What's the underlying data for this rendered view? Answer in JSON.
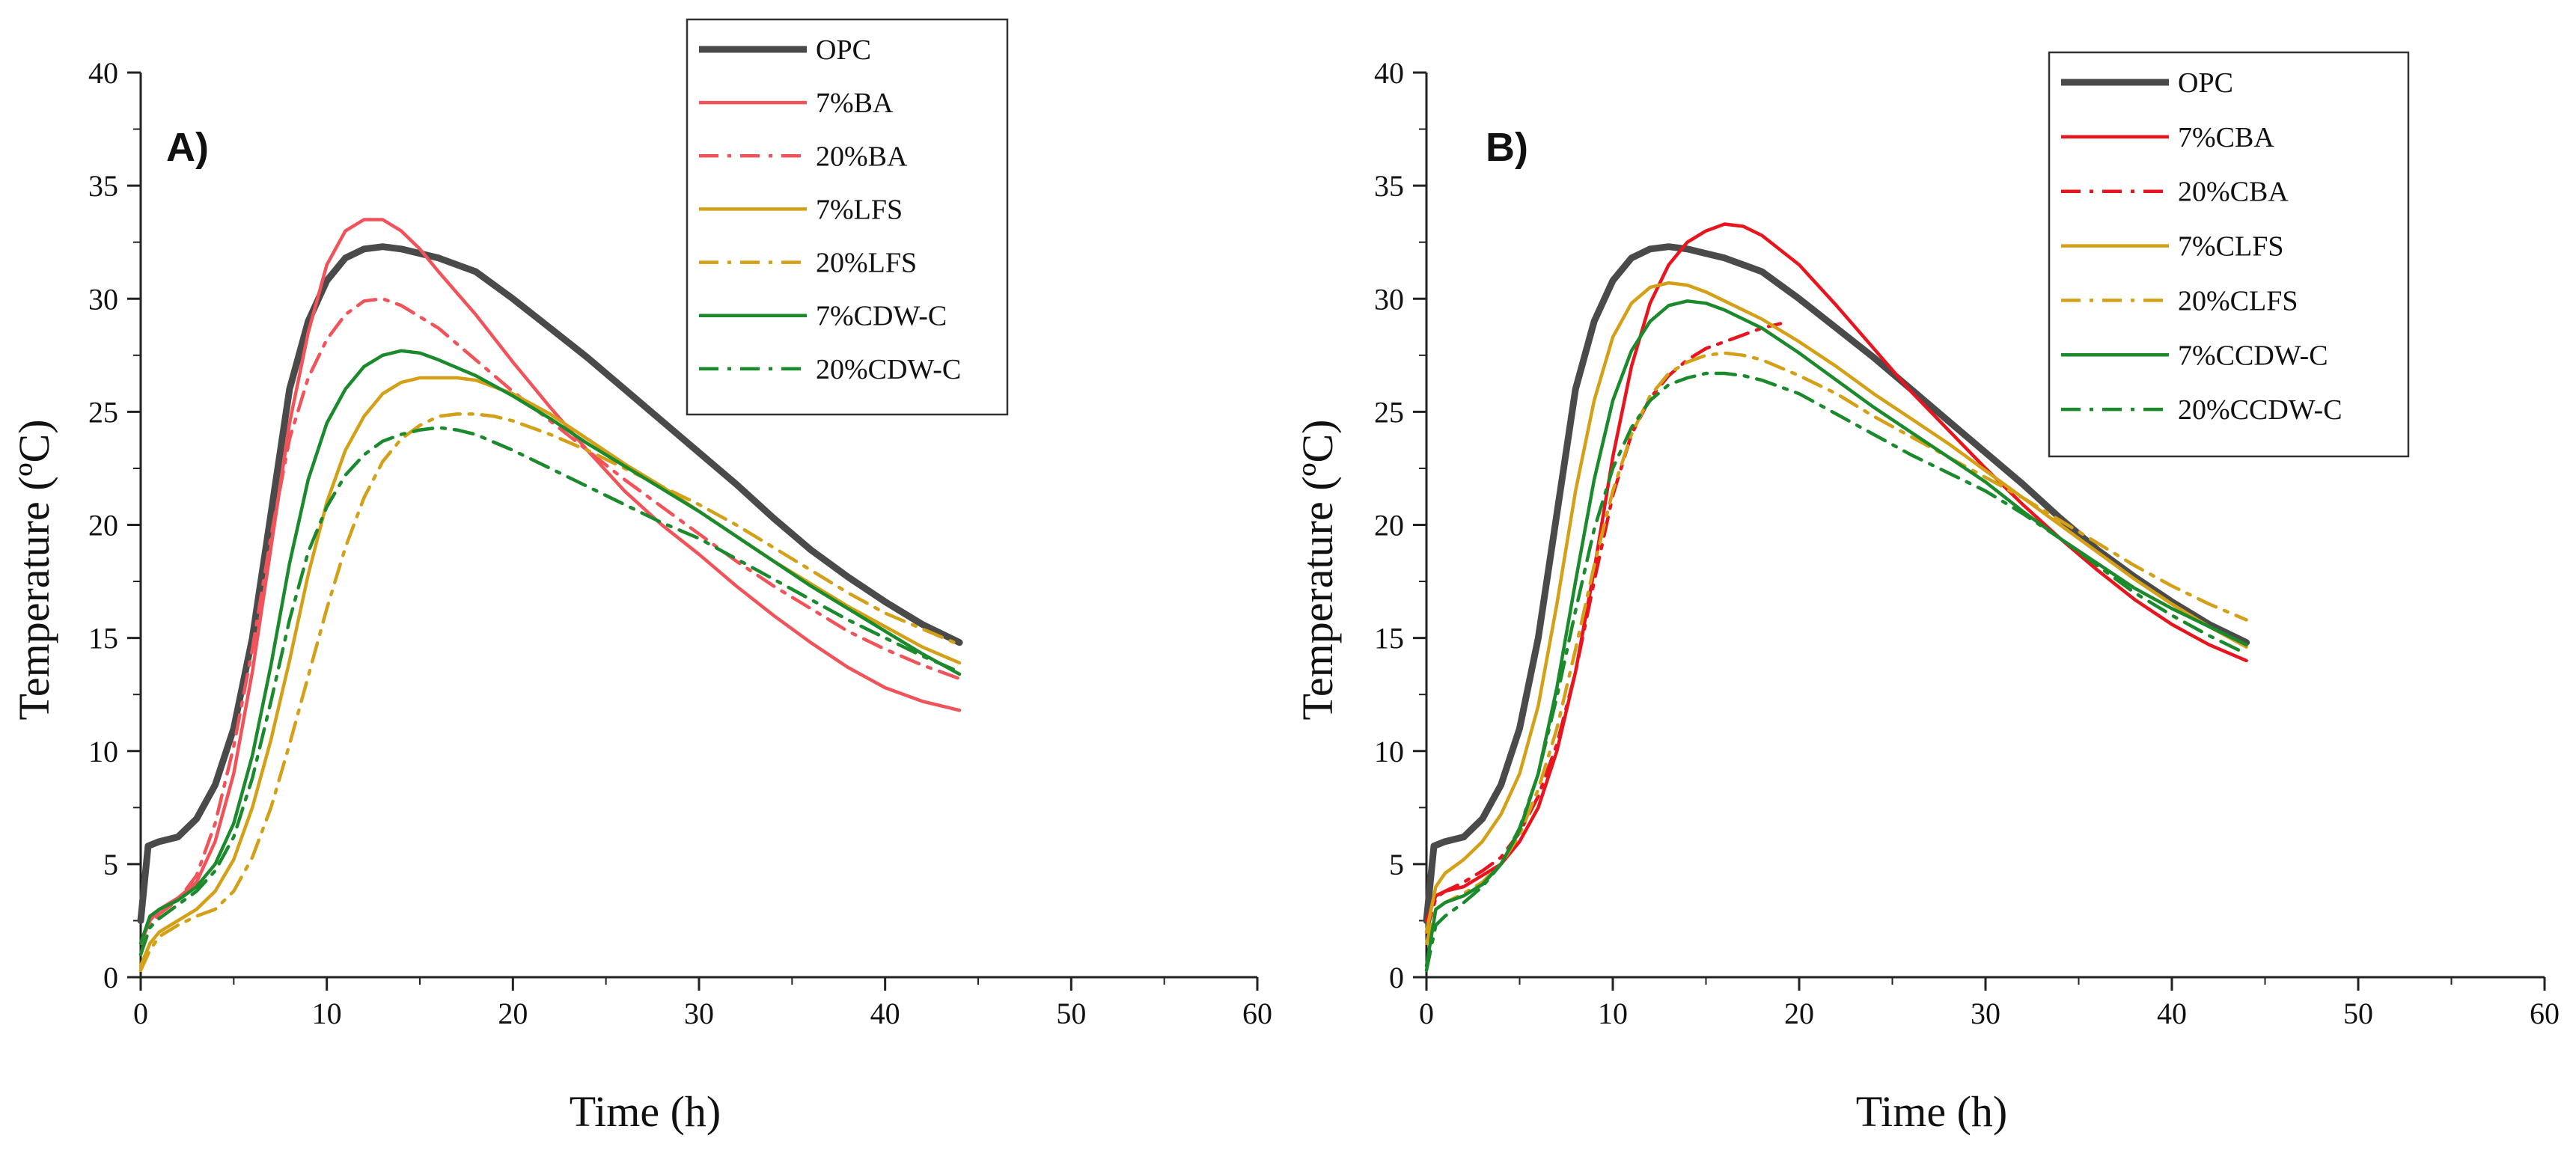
{
  "chart_data": [
    {
      "type": "line",
      "panel_label": "A)",
      "xlabel": "Time (h)",
      "ylabel": "Temperature (ºC)",
      "xlim": [
        0,
        60
      ],
      "ylim": [
        0,
        40
      ],
      "xticks": [
        "0",
        "10",
        "20",
        "30",
        "40",
        "50",
        "60"
      ],
      "yticks": [
        "0",
        "5",
        "10",
        "15",
        "20",
        "25",
        "30",
        "35",
        "40"
      ],
      "legend_position": "top-right",
      "grid": false,
      "series": [
        {
          "name": "OPC",
          "color": "#4a4a4a",
          "style": "solid",
          "bold": true,
          "x": [
            0,
            0.4,
            1,
            2,
            3,
            4,
            5,
            6,
            7,
            8,
            9,
            10,
            11,
            12,
            13,
            14,
            16,
            18,
            20,
            22,
            24,
            26,
            28,
            30,
            32,
            34,
            36,
            38,
            40,
            42,
            44
          ],
          "y": [
            2.5,
            5.8,
            6.0,
            6.2,
            7.0,
            8.5,
            11.0,
            15.0,
            20.5,
            26.0,
            29.0,
            30.8,
            31.8,
            32.2,
            32.3,
            32.2,
            31.8,
            31.2,
            30.0,
            28.7,
            27.4,
            26.0,
            24.6,
            23.2,
            21.8,
            20.3,
            18.9,
            17.7,
            16.6,
            15.6,
            14.8
          ]
        },
        {
          "name": "7%BA",
          "color": "#f0545a",
          "style": "solid",
          "bold": false,
          "x": [
            0,
            0.5,
            1,
            2,
            3,
            4,
            5,
            6,
            7,
            8,
            9,
            10,
            11,
            12,
            13,
            14,
            15,
            16,
            18,
            20,
            22,
            24,
            26,
            28,
            30,
            32,
            34,
            36,
            38,
            40,
            42,
            44
          ],
          "y": [
            1.5,
            2.5,
            3.0,
            3.5,
            4.2,
            6.0,
            9.0,
            13.5,
            19.0,
            24.5,
            28.5,
            31.5,
            33.0,
            33.5,
            33.5,
            33.0,
            32.2,
            31.2,
            29.3,
            27.2,
            25.2,
            23.3,
            21.5,
            20.0,
            18.7,
            17.3,
            16.0,
            14.8,
            13.7,
            12.8,
            12.2,
            11.8
          ]
        },
        {
          "name": "20%BA",
          "color": "#f0545a",
          "style": "dashdot",
          "bold": false,
          "x": [
            0,
            0.5,
            1,
            2,
            3,
            4,
            5,
            6,
            7,
            8,
            9,
            10,
            11,
            12,
            13,
            14,
            16,
            18,
            20,
            22,
            24,
            26,
            28,
            30,
            32,
            34,
            36,
            38,
            40,
            42,
            44
          ],
          "y": [
            1.0,
            2.3,
            2.8,
            3.4,
            4.5,
            6.8,
            10.2,
            14.5,
            19.5,
            23.8,
            26.5,
            28.2,
            29.3,
            29.9,
            30.0,
            29.7,
            28.7,
            27.3,
            25.9,
            24.6,
            23.3,
            22.0,
            20.8,
            19.6,
            18.4,
            17.3,
            16.3,
            15.3,
            14.5,
            13.8,
            13.2
          ]
        },
        {
          "name": "7%LFS",
          "color": "#d4a017",
          "style": "solid",
          "bold": false,
          "x": [
            0,
            0.5,
            1,
            2,
            3,
            4,
            5,
            6,
            7,
            8,
            9,
            10,
            11,
            12,
            13,
            14,
            15,
            16,
            17,
            18,
            20,
            22,
            24,
            26,
            28,
            30,
            32,
            34,
            36,
            38,
            40,
            42,
            44
          ],
          "y": [
            0.5,
            1.5,
            2.0,
            2.5,
            3.0,
            3.8,
            5.2,
            7.5,
            10.5,
            14.0,
            17.8,
            21.0,
            23.3,
            24.8,
            25.8,
            26.3,
            26.5,
            26.5,
            26.5,
            26.4,
            25.8,
            24.9,
            23.8,
            22.7,
            21.7,
            20.6,
            19.5,
            18.4,
            17.4,
            16.4,
            15.5,
            14.6,
            13.9
          ]
        },
        {
          "name": "20%LFS",
          "color": "#d4a017",
          "style": "dashdot",
          "bold": false,
          "x": [
            0,
            0.5,
            1,
            2,
            3,
            4,
            5,
            6,
            7,
            8,
            9,
            10,
            11,
            12,
            13,
            14,
            15,
            16,
            17,
            18,
            19,
            20,
            22,
            24,
            26,
            28,
            30,
            32,
            34,
            36,
            38,
            40,
            42,
            44
          ],
          "y": [
            0.3,
            1.2,
            1.8,
            2.3,
            2.7,
            3.0,
            3.8,
            5.3,
            7.5,
            10.3,
            13.3,
            16.3,
            19.0,
            21.2,
            22.8,
            23.8,
            24.4,
            24.8,
            24.9,
            24.9,
            24.8,
            24.6,
            24.0,
            23.3,
            22.5,
            21.7,
            20.9,
            20.0,
            19.0,
            18.0,
            17.0,
            16.1,
            15.4,
            14.7
          ]
        },
        {
          "name": "7%CDW-C",
          "color": "#1a8a2c",
          "style": "solid",
          "bold": false,
          "x": [
            0,
            0.5,
            1,
            2,
            3,
            4,
            5,
            6,
            7,
            8,
            9,
            10,
            11,
            12,
            13,
            14,
            15,
            16,
            18,
            20,
            22,
            24,
            26,
            28,
            30,
            32,
            34,
            36,
            38,
            40,
            42,
            44
          ],
          "y": [
            1.5,
            2.7,
            3.0,
            3.4,
            4.0,
            5.0,
            6.8,
            9.8,
            13.8,
            18.3,
            22.0,
            24.5,
            26.0,
            27.0,
            27.5,
            27.7,
            27.6,
            27.3,
            26.6,
            25.7,
            24.7,
            23.6,
            22.6,
            21.6,
            20.6,
            19.5,
            18.4,
            17.3,
            16.3,
            15.3,
            14.3,
            13.4
          ]
        },
        {
          "name": "20%CDW-C",
          "color": "#1a8a2c",
          "style": "dashdot",
          "bold": false,
          "x": [
            0,
            0.5,
            1,
            2,
            3,
            4,
            5,
            6,
            7,
            8,
            9,
            10,
            11,
            12,
            13,
            14,
            15,
            16,
            17,
            18,
            20,
            22,
            24,
            26,
            28,
            30,
            32,
            34,
            36,
            38,
            40,
            42,
            44
          ],
          "y": [
            1.0,
            2.2,
            2.6,
            3.2,
            3.8,
            4.7,
            6.2,
            8.8,
            12.2,
            15.8,
            18.8,
            20.8,
            22.2,
            23.1,
            23.7,
            24.0,
            24.2,
            24.3,
            24.2,
            24.0,
            23.3,
            22.5,
            21.7,
            20.9,
            20.1,
            19.4,
            18.5,
            17.6,
            16.7,
            15.8,
            15.0,
            14.2,
            13.5
          ]
        }
      ]
    },
    {
      "type": "line",
      "panel_label": "B)",
      "xlabel": "Time (h)",
      "ylabel": "Temperature (ºC)",
      "xlim": [
        0,
        60
      ],
      "ylim": [
        0,
        40
      ],
      "xticks": [
        "0",
        "10",
        "20",
        "30",
        "40",
        "50",
        "60"
      ],
      "yticks": [
        "0",
        "5",
        "10",
        "15",
        "20",
        "25",
        "30",
        "35",
        "40"
      ],
      "legend_position": "top-right",
      "grid": false,
      "series": [
        {
          "name": "OPC",
          "color": "#4a4a4a",
          "style": "solid",
          "bold": true,
          "x": [
            0,
            0.4,
            1,
            2,
            3,
            4,
            5,
            6,
            7,
            8,
            9,
            10,
            11,
            12,
            13,
            14,
            16,
            18,
            20,
            22,
            24,
            26,
            28,
            30,
            32,
            34,
            36,
            38,
            40,
            42,
            44
          ],
          "y": [
            2.5,
            5.8,
            6.0,
            6.2,
            7.0,
            8.5,
            11.0,
            15.0,
            20.5,
            26.0,
            29.0,
            30.8,
            31.8,
            32.2,
            32.3,
            32.2,
            31.8,
            31.2,
            30.0,
            28.7,
            27.4,
            26.0,
            24.6,
            23.2,
            21.8,
            20.3,
            18.9,
            17.7,
            16.6,
            15.6,
            14.8
          ]
        },
        {
          "name": "7%CBA",
          "color": "#e8141e",
          "style": "solid",
          "bold": false,
          "x": [
            0,
            0.5,
            1,
            2,
            3,
            4,
            5,
            6,
            7,
            8,
            9,
            10,
            11,
            12,
            13,
            14,
            15,
            16,
            17,
            18,
            20,
            22,
            24,
            26,
            28,
            30,
            32,
            34,
            36,
            38,
            40,
            42,
            44
          ],
          "y": [
            2.5,
            3.6,
            3.8,
            4.0,
            4.5,
            5.0,
            6.0,
            7.5,
            10.0,
            13.5,
            18.0,
            23.0,
            27.0,
            29.8,
            31.5,
            32.5,
            33.0,
            33.3,
            33.2,
            32.8,
            31.5,
            29.7,
            27.8,
            25.9,
            24.2,
            22.5,
            20.9,
            19.4,
            18.0,
            16.7,
            15.6,
            14.7,
            14.0
          ]
        },
        {
          "name": "20%CBA",
          "color": "#e8141e",
          "style": "dashdot",
          "bold": false,
          "x": [
            0,
            0.5,
            1,
            2,
            3,
            4,
            5,
            6,
            7,
            8,
            9,
            10,
            11,
            12,
            13,
            14,
            15,
            16,
            17,
            18,
            19
          ],
          "y": [
            2.0,
            3.5,
            3.8,
            4.2,
            4.7,
            5.3,
            6.4,
            8.0,
            10.3,
            13.5,
            17.5,
            21.3,
            24.0,
            25.6,
            26.6,
            27.3,
            27.8,
            28.1,
            28.4,
            28.7,
            28.9
          ]
        },
        {
          "name": "7%CLFS",
          "color": "#d4a017",
          "style": "solid",
          "bold": false,
          "x": [
            0,
            0.5,
            1,
            2,
            3,
            4,
            5,
            6,
            7,
            8,
            9,
            10,
            11,
            12,
            13,
            14,
            15,
            16,
            18,
            20,
            22,
            24,
            26,
            28,
            30,
            32,
            34,
            36,
            38,
            40,
            42,
            44
          ],
          "y": [
            2.0,
            4.0,
            4.6,
            5.2,
            6.0,
            7.2,
            9.0,
            12.0,
            16.5,
            21.5,
            25.5,
            28.3,
            29.8,
            30.5,
            30.7,
            30.6,
            30.3,
            29.9,
            29.1,
            28.1,
            27.0,
            25.8,
            24.7,
            23.6,
            22.4,
            21.2,
            20.0,
            18.8,
            17.6,
            16.5,
            15.5,
            14.6
          ]
        },
        {
          "name": "20%CLFS",
          "color": "#d4a017",
          "style": "dashdot",
          "bold": false,
          "x": [
            0,
            0.5,
            1,
            2,
            3,
            4,
            5,
            6,
            7,
            8,
            9,
            10,
            11,
            12,
            13,
            14,
            15,
            16,
            17,
            18,
            20,
            22,
            24,
            26,
            28,
            30,
            32,
            34,
            36,
            38,
            40,
            42,
            44
          ],
          "y": [
            1.5,
            3.0,
            3.3,
            3.7,
            4.2,
            5.0,
            6.3,
            8.3,
            11.0,
            14.5,
            18.2,
            21.5,
            24.0,
            25.7,
            26.7,
            27.2,
            27.5,
            27.6,
            27.5,
            27.3,
            26.6,
            25.8,
            24.8,
            23.9,
            23.0,
            22.1,
            21.2,
            20.2,
            19.2,
            18.2,
            17.3,
            16.5,
            15.8
          ]
        },
        {
          "name": "7%CCDW-C",
          "color": "#1a8a2c",
          "style": "solid",
          "bold": false,
          "x": [
            0,
            0.5,
            1,
            2,
            3,
            4,
            5,
            6,
            7,
            8,
            9,
            10,
            11,
            12,
            13,
            14,
            15,
            16,
            18,
            20,
            22,
            24,
            26,
            28,
            30,
            32,
            34,
            36,
            38,
            40,
            42,
            44
          ],
          "y": [
            0.5,
            3.0,
            3.3,
            3.6,
            4.1,
            5.0,
            6.5,
            9.0,
            12.8,
            17.5,
            22.0,
            25.5,
            27.7,
            29.0,
            29.7,
            29.9,
            29.8,
            29.5,
            28.7,
            27.6,
            26.4,
            25.2,
            24.1,
            23.0,
            21.9,
            20.6,
            19.4,
            18.3,
            17.2,
            16.3,
            15.5,
            14.7
          ]
        },
        {
          "name": "20%CCDW-C",
          "color": "#1a8a2c",
          "style": "dashdot",
          "bold": false,
          "x": [
            0,
            0.5,
            1,
            2,
            3,
            4,
            5,
            6,
            7,
            8,
            9,
            10,
            11,
            12,
            13,
            14,
            15,
            16,
            17,
            18,
            20,
            22,
            24,
            26,
            28,
            30,
            32,
            34,
            36,
            38,
            40,
            42,
            44
          ],
          "y": [
            0.3,
            2.3,
            2.7,
            3.3,
            4.0,
            5.0,
            6.6,
            9.0,
            12.4,
            16.2,
            19.8,
            22.5,
            24.3,
            25.5,
            26.2,
            26.5,
            26.7,
            26.7,
            26.6,
            26.4,
            25.8,
            24.9,
            24.0,
            23.1,
            22.3,
            21.5,
            20.5,
            19.4,
            18.2,
            17.0,
            16.0,
            15.1,
            14.3
          ]
        }
      ]
    }
  ]
}
